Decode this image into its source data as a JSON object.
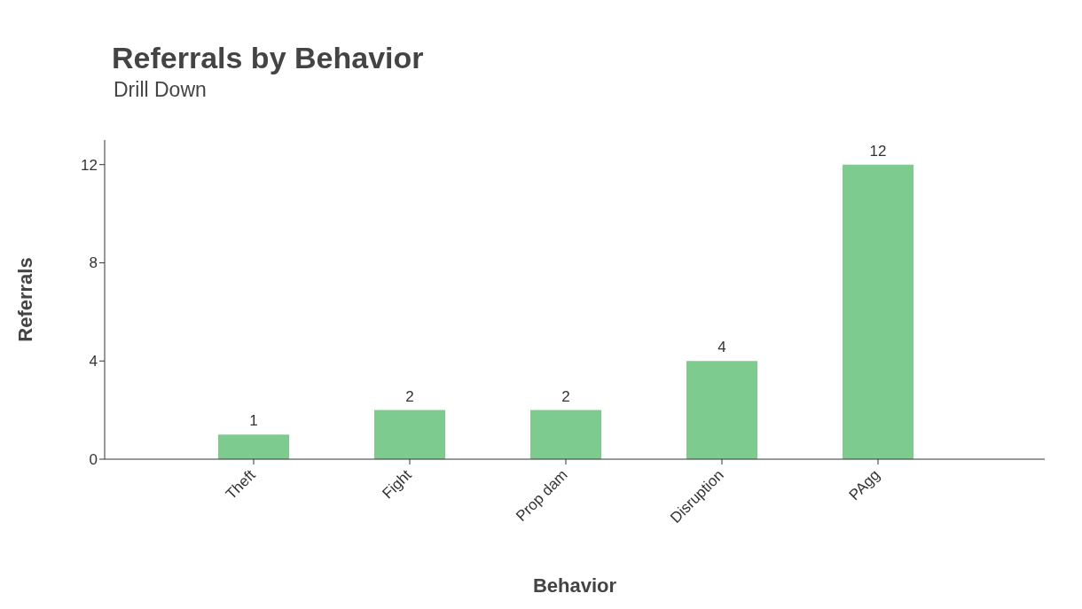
{
  "chart_data": {
    "type": "bar",
    "title": "Referrals by Behavior",
    "subtitle": "Drill Down",
    "xlabel": "Behavior",
    "ylabel": "Referrals",
    "categories": [
      "Theft",
      "Fight",
      "Prop dam",
      "Disruption",
      "PAgg"
    ],
    "values": [
      1,
      2,
      2,
      4,
      12
    ],
    "color": "#7dcb8e",
    "ylim": [
      0,
      13
    ],
    "yticks": [
      0,
      4,
      8,
      12
    ],
    "grid": false,
    "data_labels": true
  }
}
